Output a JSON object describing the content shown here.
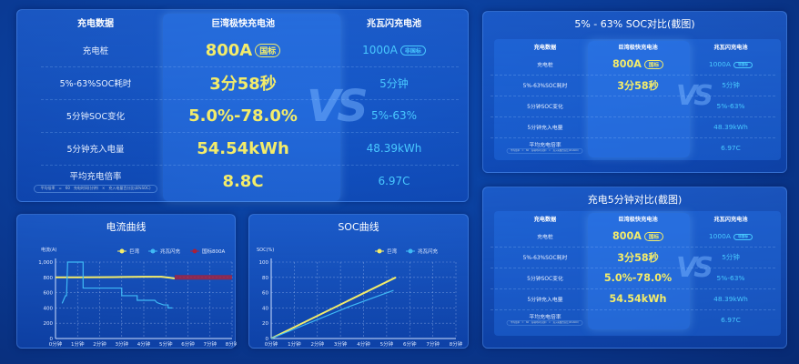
{
  "main_table": {
    "headers": [
      "充电数据",
      "巨湾极快充电池",
      "兆瓦闪充电池"
    ],
    "rows": [
      {
        "label": "充电桩",
        "a": "800A",
        "a_badge": "国标",
        "b": "1000A",
        "b_badge": "非国标"
      },
      {
        "label": "5%-63%SOC耗时",
        "a": "3分58秒",
        "b": "5分钟"
      },
      {
        "label": "5分钟SOC变化",
        "a": "5.0%-78.0%",
        "b": "5%-63%"
      },
      {
        "label": "5分钟充入电量",
        "a": "54.54kWh",
        "b": "48.39kWh"
      },
      {
        "label": "平均充电倍率",
        "a": "8.8C",
        "b": "6.97C"
      }
    ],
    "formula": {
      "left": "平均倍率",
      "eq": "=",
      "num": "60",
      "den": "充电时间(分钟)",
      "times": "×",
      "right": "充入电量百分比(Δ%SOC)"
    },
    "vs": "VS"
  },
  "panel_soc_compare": {
    "title": "5% - 63% SOC对比(截图)",
    "rows_a": [
      "800A",
      "3分58秒",
      "",
      "",
      ""
    ]
  },
  "panel_5min_compare": {
    "title": "充电5分钟对比(截图)",
    "rows_a": [
      "800A",
      "3分58秒",
      "5.0%-78.0%",
      "54.54kWh",
      ""
    ]
  },
  "chart_data": [
    {
      "type": "line",
      "title": "电流曲线",
      "ylabel": "电流(A)",
      "xlim": [
        0,
        8
      ],
      "ylim": [
        0,
        1000
      ],
      "x_ticks": [
        "0分钟",
        "1分钟",
        "2分钟",
        "3分钟",
        "4分钟",
        "5分钟",
        "6分钟",
        "7分钟",
        "8分钟"
      ],
      "y_ticks": [
        "0",
        "200",
        "400",
        "600",
        "800",
        "1,000"
      ],
      "grid": true,
      "legend": "top-right",
      "series": [
        {
          "name": "巨湾",
          "color": "#f3ec6a",
          "points": [
            [
              0,
              800
            ],
            [
              1,
              800
            ],
            [
              2,
              802
            ],
            [
              3,
              805
            ],
            [
              4,
              808
            ],
            [
              4.8,
              808
            ],
            [
              5.2,
              795
            ],
            [
              5.4,
              785
            ]
          ]
        },
        {
          "name": "兆瓦闪充",
          "color": "#3fb9f5",
          "points": [
            [
              0.3,
              460
            ],
            [
              0.45,
              560
            ],
            [
              0.5,
              560
            ],
            [
              0.55,
              1000
            ],
            [
              1.25,
              1000
            ],
            [
              1.25,
              660
            ],
            [
              3.0,
              660
            ],
            [
              3.0,
              560
            ],
            [
              3.7,
              560
            ],
            [
              3.7,
              500
            ],
            [
              4.5,
              500
            ],
            [
              4.6,
              470
            ],
            [
              4.9,
              440
            ],
            [
              5.1,
              440
            ],
            [
              5.1,
              400
            ],
            [
              5.3,
              400
            ]
          ]
        },
        {
          "name": "国标800A",
          "color": "#a8203a",
          "points": [
            [
              5.4,
              800
            ],
            [
              8,
              800
            ]
          ]
        }
      ]
    },
    {
      "type": "line",
      "title": "SOC曲线",
      "ylabel": "SOC(%)",
      "xlim": [
        0,
        8
      ],
      "ylim": [
        0,
        100
      ],
      "x_ticks": [
        "0分钟",
        "1分钟",
        "2分钟",
        "3分钟",
        "4分钟",
        "5分钟",
        "6分钟",
        "7分钟",
        "8分钟"
      ],
      "y_ticks": [
        "0",
        "20",
        "40",
        "60",
        "80",
        "100"
      ],
      "grid": true,
      "legend": "top-right",
      "series": [
        {
          "name": "巨湾",
          "color": "#f3ec6a",
          "points": [
            [
              0,
              0
            ],
            [
              5.4,
              80
            ]
          ]
        },
        {
          "name": "兆瓦闪充",
          "color": "#3fb9f5",
          "points": [
            [
              0,
              0
            ],
            [
              3.4,
              42
            ],
            [
              5.3,
              63
            ]
          ]
        }
      ]
    }
  ]
}
